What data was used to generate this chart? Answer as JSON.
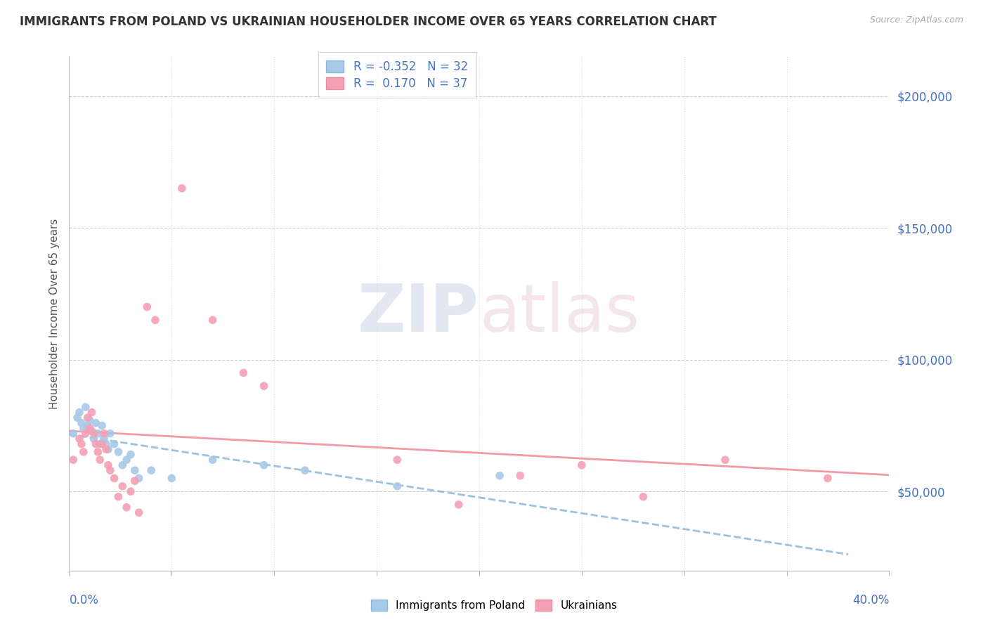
{
  "title": "IMMIGRANTS FROM POLAND VS UKRAINIAN HOUSEHOLDER INCOME OVER 65 YEARS CORRELATION CHART",
  "source": "Source: ZipAtlas.com",
  "ylabel": "Householder Income Over 65 years",
  "xlim": [
    0.0,
    0.4
  ],
  "ylim": [
    20000,
    215000
  ],
  "yticks": [
    50000,
    100000,
    150000,
    200000
  ],
  "ytick_labels": [
    "$50,000",
    "$100,000",
    "$150,000",
    "$200,000"
  ],
  "legend_poland": {
    "R": "-0.352",
    "N": "32"
  },
  "legend_ukraine": {
    "R": "0.170",
    "N": "37"
  },
  "color_poland": "#a8c8e8",
  "color_ukraine": "#f4a0b4",
  "line_color_poland": "#88b8d8",
  "line_color_ukraine": "#f08898",
  "background_color": "#ffffff",
  "poland_x": [
    0.002,
    0.004,
    0.005,
    0.006,
    0.007,
    0.008,
    0.009,
    0.01,
    0.011,
    0.012,
    0.013,
    0.014,
    0.015,
    0.016,
    0.017,
    0.018,
    0.019,
    0.02,
    0.022,
    0.024,
    0.026,
    0.028,
    0.03,
    0.032,
    0.034,
    0.04,
    0.05,
    0.07,
    0.095,
    0.115,
    0.16,
    0.21
  ],
  "poland_y": [
    72000,
    78000,
    80000,
    76000,
    74000,
    82000,
    75000,
    77000,
    73000,
    70000,
    76000,
    72000,
    68000,
    75000,
    70000,
    68000,
    66000,
    72000,
    68000,
    65000,
    60000,
    62000,
    64000,
    58000,
    55000,
    58000,
    55000,
    62000,
    60000,
    58000,
    52000,
    56000
  ],
  "ukraine_x": [
    0.002,
    0.005,
    0.006,
    0.007,
    0.008,
    0.009,
    0.01,
    0.011,
    0.012,
    0.013,
    0.014,
    0.015,
    0.016,
    0.017,
    0.018,
    0.019,
    0.02,
    0.022,
    0.024,
    0.026,
    0.028,
    0.03,
    0.032,
    0.034,
    0.038,
    0.042,
    0.055,
    0.07,
    0.085,
    0.095,
    0.16,
    0.19,
    0.22,
    0.25,
    0.28,
    0.32,
    0.37
  ],
  "ukraine_y": [
    62000,
    70000,
    68000,
    65000,
    72000,
    78000,
    74000,
    80000,
    72000,
    68000,
    65000,
    62000,
    68000,
    72000,
    66000,
    60000,
    58000,
    55000,
    48000,
    52000,
    44000,
    50000,
    54000,
    42000,
    120000,
    115000,
    165000,
    115000,
    95000,
    90000,
    62000,
    45000,
    56000,
    60000,
    48000,
    62000,
    55000
  ]
}
